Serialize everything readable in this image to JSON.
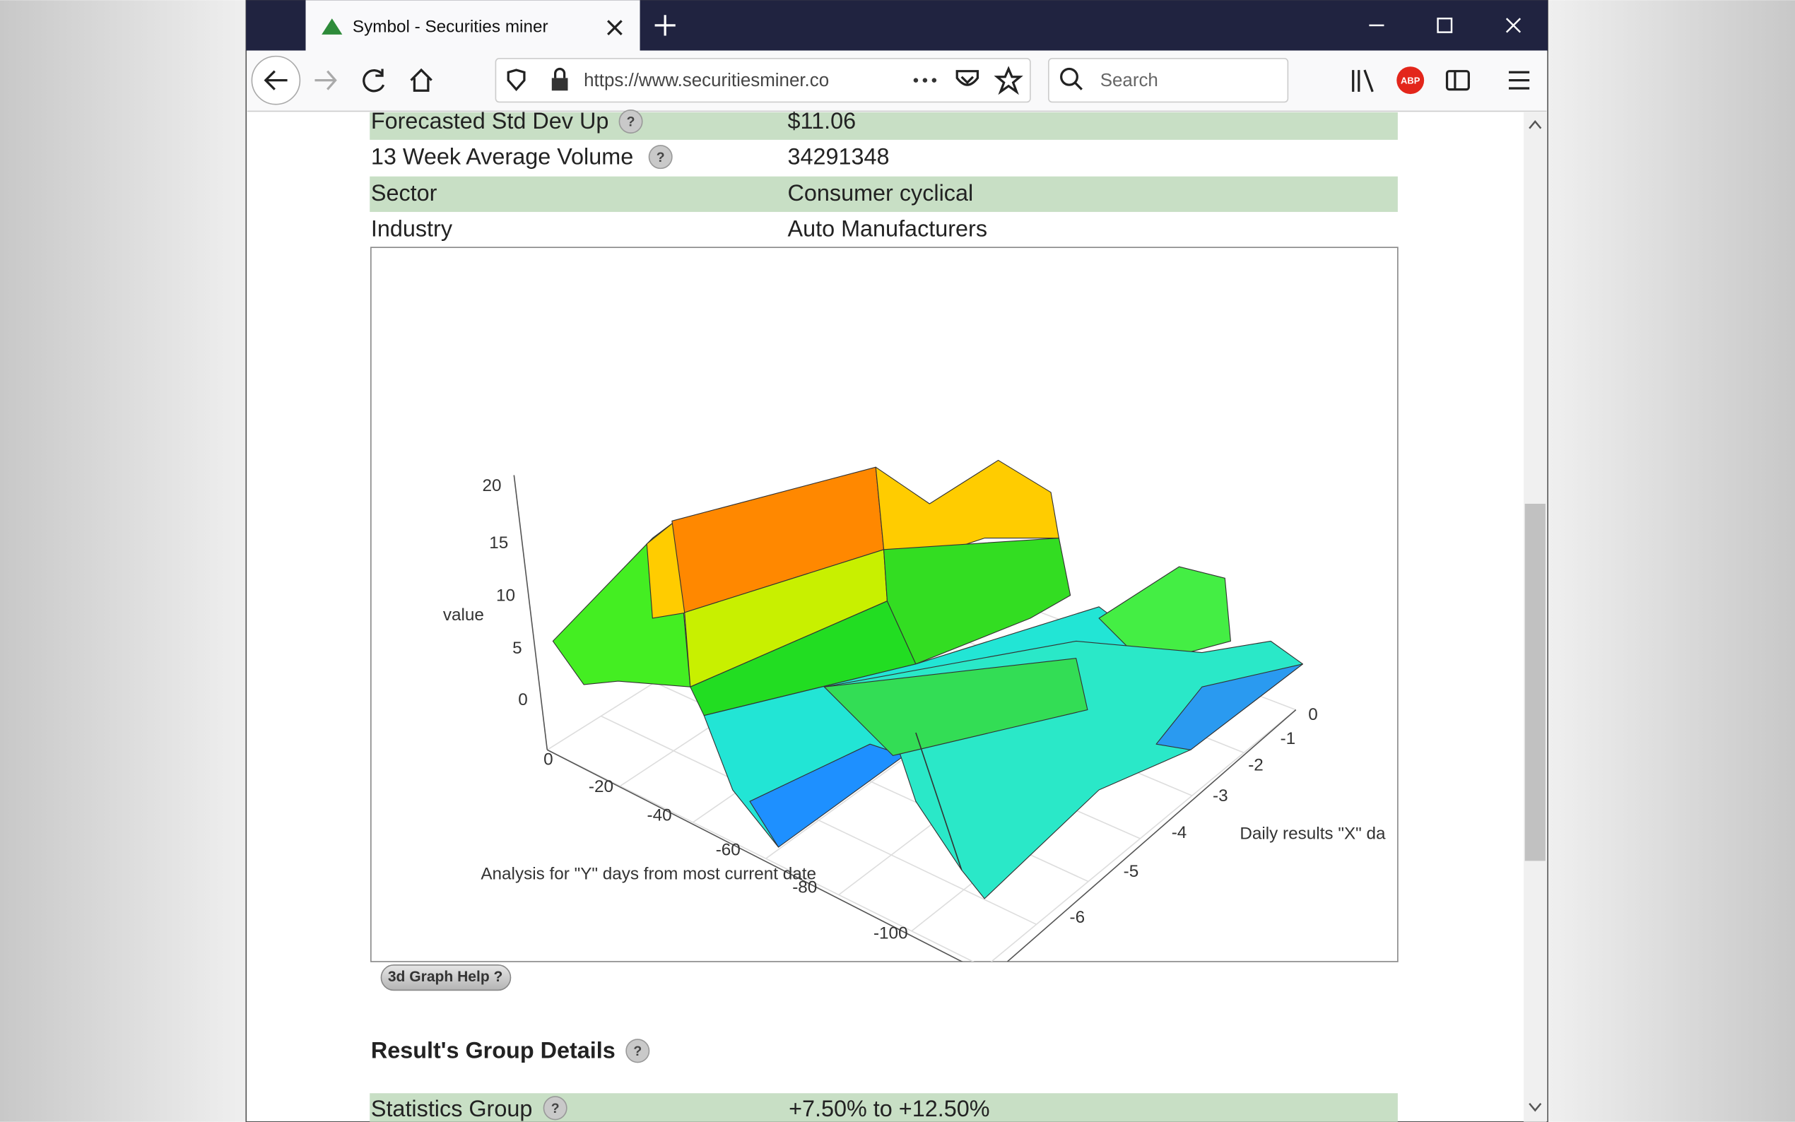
{
  "browser": {
    "tab_title": "Symbol - Securities miner",
    "url": "https://www.securitiesminer.co",
    "search_placeholder": "Search",
    "abp_label": "ABP"
  },
  "help_icon": "?",
  "table": {
    "rows": [
      [
        "Forecasted Std Dev Up",
        "$11.06"
      ],
      [
        "13 Week Average Volume",
        "34291348"
      ],
      [
        "Sector",
        "Consumer cyclical"
      ],
      [
        "Industry",
        "Auto Manufacturers"
      ]
    ]
  },
  "graph": {
    "z_label": "value",
    "z_ticks": [
      "20",
      "15",
      "10",
      "5",
      "0"
    ],
    "y_label": "Analysis for \"Y\" days from most current date",
    "y_ticks": [
      "0",
      "-20",
      "-40",
      "-60",
      "-80",
      "-100"
    ],
    "x_label": "Daily results \"X\" da",
    "x_ticks": [
      "0",
      "-1",
      "-2",
      "-3",
      "-4",
      "-5",
      "-6"
    ],
    "help_button": "3d Graph Help ?"
  },
  "section": {
    "title": "Result's Group Details",
    "rows": [
      [
        "Statistics Group",
        "+7.50% to +12.50%"
      ]
    ]
  }
}
